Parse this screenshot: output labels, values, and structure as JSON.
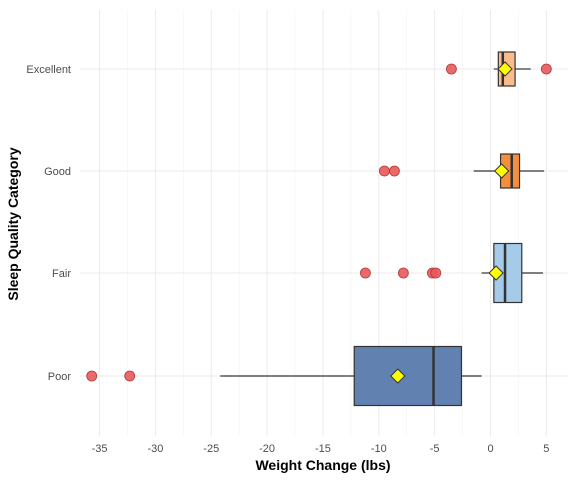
{
  "chart_data": {
    "type": "boxplot",
    "orientation": "horizontal",
    "xlabel": "Weight Change (lbs)",
    "ylabel": "Sleep Quality Category",
    "xlim": [
      -38,
      7
    ],
    "x_ticks": [
      -35,
      -30,
      -25,
      -20,
      -15,
      -10,
      -5,
      0,
      5
    ],
    "grid": true,
    "legend": "none",
    "categories": [
      "Poor",
      "Fair",
      "Good",
      "Excellent"
    ],
    "series": [
      {
        "category": "Poor",
        "color": "#6182b0",
        "whisker_low": -24.2,
        "q1": -12.2,
        "median": -5.1,
        "q3": -2.6,
        "whisker_high": -0.8,
        "mean": -8.3,
        "outliers": [
          -35.7,
          -32.3
        ]
      },
      {
        "category": "Fair",
        "color": "#a6cbe9",
        "whisker_low": -0.8,
        "q1": 0.3,
        "median": 1.3,
        "q3": 2.8,
        "whisker_high": 4.7,
        "mean": 0.5,
        "outliers": [
          -11.2,
          -7.8,
          -5.2,
          -4.9
        ]
      },
      {
        "category": "Good",
        "color": "#f38f3f",
        "whisker_low": -1.5,
        "q1": 0.9,
        "median": 1.9,
        "q3": 2.6,
        "whisker_high": 4.8,
        "mean": 1.0,
        "outliers": [
          -9.5,
          -8.6
        ]
      },
      {
        "category": "Excellent",
        "color": "#fbbb8a",
        "whisker_low": 0.3,
        "q1": 0.7,
        "median": 1.1,
        "q3": 2.2,
        "whisker_high": 3.6,
        "mean": 1.3,
        "outliers": [
          -3.5,
          5.0
        ]
      }
    ],
    "outlier_color": "#e8595a",
    "mean_marker_color": "#ffff00"
  }
}
